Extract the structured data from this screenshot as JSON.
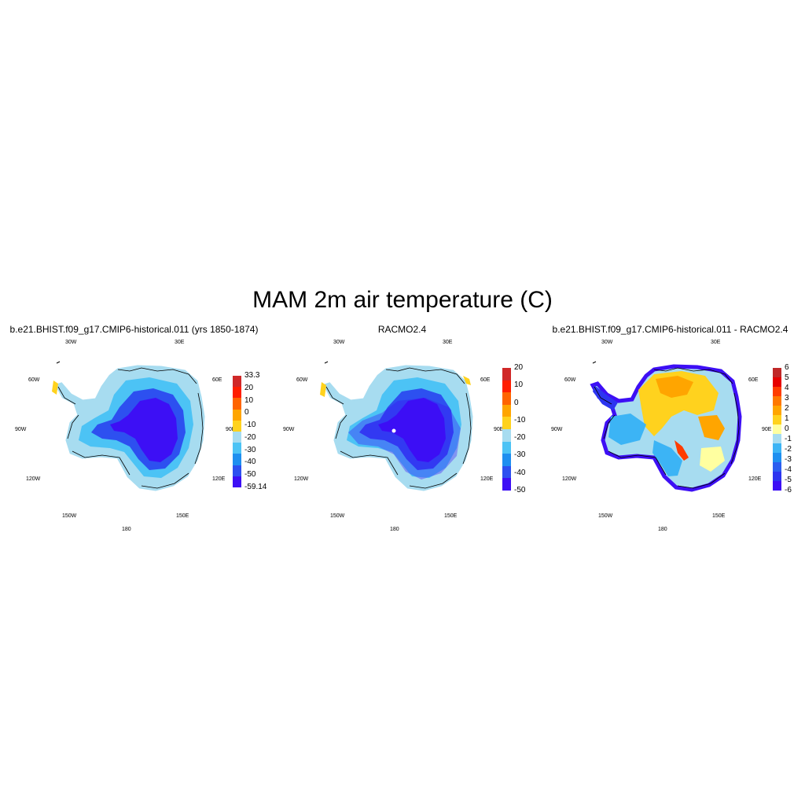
{
  "figure": {
    "title": "MAM 2m air temperature (C)"
  },
  "panels": [
    {
      "title": "b.e21.BHIST.f09_g17.CMIP6-historical.011 (yrs 1850-1874)",
      "map_style": "model",
      "colorbar": {
        "colors": [
          "#3d0ff5",
          "#2d50f0",
          "#1e8ff0",
          "#4cc3f5",
          "#a7dcf0",
          "#ffd21e",
          "#ffa500",
          "#ff6400",
          "#ff1e00",
          "#d02828"
        ],
        "labels": [
          "33.3",
          "20",
          "10",
          "0",
          "-10",
          "-20",
          "-30",
          "-40",
          "-50",
          "-59.14"
        ]
      }
    },
    {
      "title": "RACMO2.4",
      "map_style": "racmo",
      "colorbar": {
        "colors": [
          "#3d0ff5",
          "#2d50f0",
          "#1e8ff0",
          "#4cc3f5",
          "#a7dcf0",
          "#ffd21e",
          "#ffa500",
          "#ff6400",
          "#ff1e00",
          "#d02828"
        ],
        "labels": [
          "20",
          "10",
          "0",
          "-10",
          "-20",
          "-30",
          "-40",
          "-50"
        ]
      }
    },
    {
      "title": "b.e21.BHIST.f09_g17.CMIP6-historical.011 - RACMO2.4",
      "map_style": "difference",
      "colorbar": {
        "colors": [
          "#3d0ff5",
          "#2d35f0",
          "#2b5ef0",
          "#1e8ff0",
          "#3cb4f5",
          "#a7dcf0",
          "#ffffa0",
          "#ffd21e",
          "#ffa500",
          "#ff7800",
          "#ff3c00",
          "#e60000",
          "#c02828"
        ],
        "labels": [
          "6",
          "5",
          "4",
          "3",
          "2",
          "1",
          "0",
          "-1",
          "-2",
          "-3",
          "-4",
          "-5",
          "-6"
        ]
      }
    }
  ],
  "longitude_labels": [
    "30W",
    "30E",
    "60W",
    "60E",
    "90W",
    "90E",
    "120W",
    "120E",
    "150W",
    "150E",
    "180"
  ],
  "colors": {
    "coast": "#000000",
    "background": "#ffffff"
  }
}
